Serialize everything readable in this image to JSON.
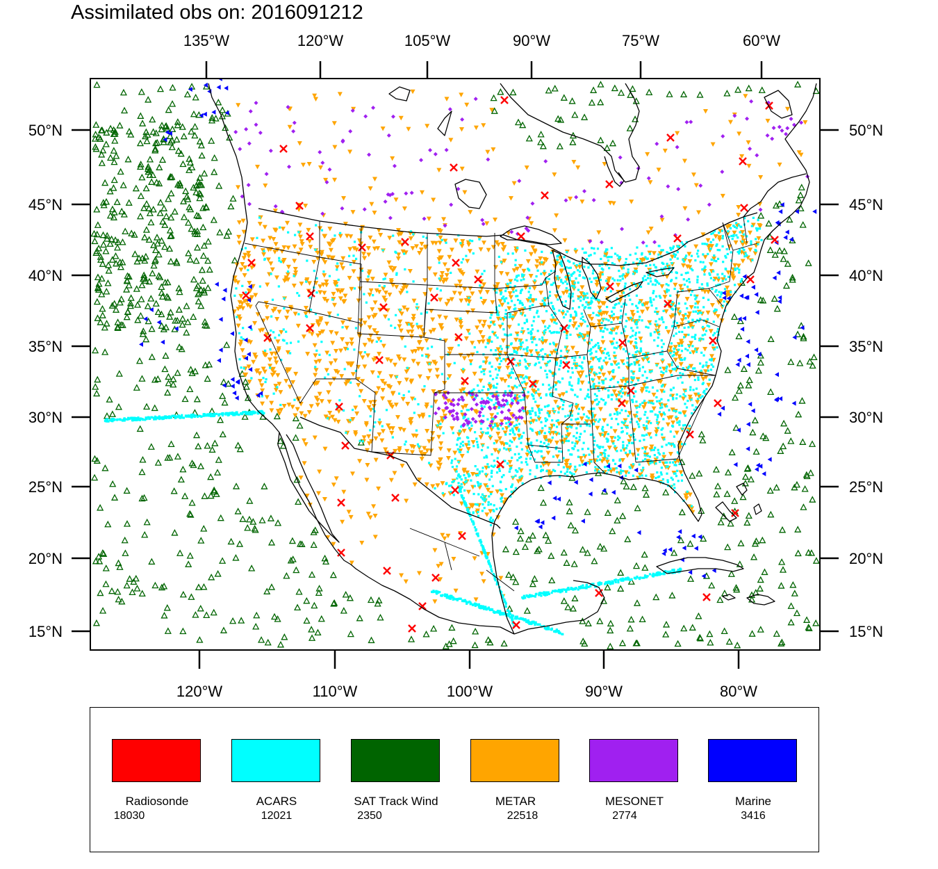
{
  "title": "Assimilated obs on: 2016091212",
  "map": {
    "projection": "lambert-conformal",
    "extent": {
      "lon_min": -128,
      "lon_max": -62,
      "lat_min": 14,
      "lat_max": 54
    },
    "top_lon_ticks": [
      "135°W",
      "120°W",
      "105°W",
      "90°W",
      "75°W",
      "60°W"
    ],
    "bottom_lon_ticks": [
      "120°W",
      "110°W",
      "100°W",
      "90°W",
      "80°W"
    ],
    "left_lat_ticks": [
      "50°N",
      "45°N",
      "40°N",
      "35°N",
      "30°N",
      "25°N",
      "20°N",
      "15°N"
    ],
    "right_lat_ticks": [
      "50°N",
      "45°N",
      "40°N",
      "35°N",
      "30°N",
      "25°N",
      "20°N",
      "15°N"
    ],
    "line_color": "#000000"
  },
  "legend": {
    "items": [
      {
        "name": "Radiosonde",
        "count": "18030",
        "color": "#ff0000",
        "marker": "x-mark"
      },
      {
        "name": "ACARS",
        "count": "12021",
        "color": "#00ffff",
        "marker": "square-dot"
      },
      {
        "name": "SAT Track Wind",
        "count": "2350",
        "color": "#006400",
        "marker": "triangle-up-outline"
      },
      {
        "name": "METAR",
        "count": "22518",
        "color": "#ffa500",
        "marker": "triangle-down-filled"
      },
      {
        "name": "MESONET",
        "count": "2774",
        "color": "#a020f0",
        "marker": "diamond"
      },
      {
        "name": "Marine",
        "count": "3416",
        "color": "#0000ff",
        "marker": "triangle-left-filled"
      }
    ]
  }
}
